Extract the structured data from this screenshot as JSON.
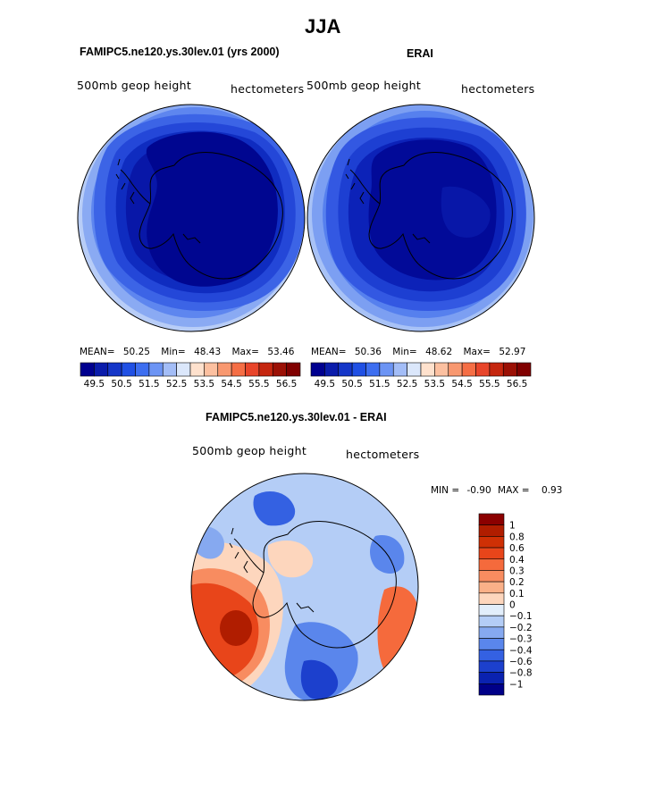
{
  "main_title": "JJA",
  "panels": [
    {
      "id": "model",
      "title": "FAMIPC5.ne120.ys.30lev.01 (yrs 2000)",
      "left_label": "500mb geop height",
      "right_label": "hectometers",
      "stats": {
        "mean_label": "MEAN=",
        "mean": "50.25",
        "min_label": "Min=",
        "min": "48.43",
        "max_label": "Max=",
        "max": "53.46"
      }
    },
    {
      "id": "obs",
      "title": "ERAI",
      "left_label": "500mb geop height",
      "right_label": "hectometers",
      "stats": {
        "mean_label": "MEAN=",
        "mean": "50.36",
        "min_label": "Min=",
        "min": "48.62",
        "max_label": "Max=",
        "max": "52.97"
      }
    }
  ],
  "diff_panel": {
    "title": "FAMIPC5.ne120.ys.30lev.01 - ERAI",
    "left_label": "500mb geop height",
    "right_label": "hectometers",
    "min_label": "MIN =",
    "min": "-0.90",
    "max_label": "MAX =",
    "max": "0.93"
  },
  "chart_data": [
    {
      "type": "heatmap",
      "subtype": "polar stereographic contour map (Southern Hemisphere)",
      "title": "FAMIPC5.ne120.ys.30lev.01 (yrs 2000)",
      "variable": "500mb geop height",
      "units": "hectometers",
      "mean": 50.25,
      "min": 48.43,
      "max": 53.46,
      "colorbar_levels": [
        49.5,
        50,
        50.5,
        51,
        51.5,
        52,
        52.5,
        53,
        53.5,
        54,
        54.5,
        55,
        55.5,
        56,
        56.5
      ],
      "colorbar_tick_labels": [
        "49.5",
        "50.5",
        "51.5",
        "52.5",
        "53.5",
        "54.5",
        "55.5",
        "56.5"
      ],
      "colorbar_colors": [
        "#00008f",
        "#0a1cab",
        "#1536c8",
        "#2050e4",
        "#3d6ef0",
        "#6c94f4",
        "#a3bdf7",
        "#dbe7fb",
        "#fee1cd",
        "#fcc0a0",
        "#f89870",
        "#f56e45",
        "#e8452a",
        "#c5260f",
        "#9b1005",
        "#800000"
      ]
    },
    {
      "type": "heatmap",
      "subtype": "polar stereographic contour map (Southern Hemisphere)",
      "title": "ERAI",
      "variable": "500mb geop height",
      "units": "hectometers",
      "mean": 50.36,
      "min": 48.62,
      "max": 52.97,
      "colorbar_levels": [
        49.5,
        50,
        50.5,
        51,
        51.5,
        52,
        52.5,
        53,
        53.5,
        54,
        54.5,
        55,
        55.5,
        56,
        56.5
      ],
      "colorbar_tick_labels": [
        "49.5",
        "50.5",
        "51.5",
        "52.5",
        "53.5",
        "54.5",
        "55.5",
        "56.5"
      ],
      "colorbar_colors": [
        "#00008f",
        "#0a1cab",
        "#1536c8",
        "#2050e4",
        "#3d6ef0",
        "#6c94f4",
        "#a3bdf7",
        "#dbe7fb",
        "#fee1cd",
        "#fcc0a0",
        "#f89870",
        "#f56e45",
        "#e8452a",
        "#c5260f",
        "#9b1005",
        "#800000"
      ]
    },
    {
      "type": "heatmap",
      "subtype": "polar stereographic difference contour map (Southern Hemisphere)",
      "title": "FAMIPC5.ne120.ys.30lev.01 - ERAI",
      "variable": "500mb geop height",
      "units": "hectometers",
      "min": -0.9,
      "max": 0.93,
      "colorbar_levels": [
        1,
        0.8,
        0.6,
        0.4,
        0.3,
        0.2,
        0.1,
        0,
        -0.1,
        -0.2,
        -0.3,
        -0.4,
        -0.6,
        -0.8,
        -1
      ],
      "colorbar_tick_labels": [
        "1",
        "0.8",
        "0.6",
        "0.4",
        "0.3",
        "0.2",
        "0.1",
        "0",
        "−0.1",
        "−0.2",
        "−0.3",
        "−0.4",
        "−0.6",
        "−0.8",
        "−1"
      ],
      "colorbar_colors": [
        "#8b0000",
        "#b01d00",
        "#cf3005",
        "#e8451a",
        "#f56a3c",
        "#f88c60",
        "#fab088",
        "#fdd6bd",
        "#e2eefb",
        "#b4cdf6",
        "#86a9f0",
        "#5a86ec",
        "#3461e2",
        "#1c40cd",
        "#0a22b0",
        "#000088"
      ]
    }
  ]
}
